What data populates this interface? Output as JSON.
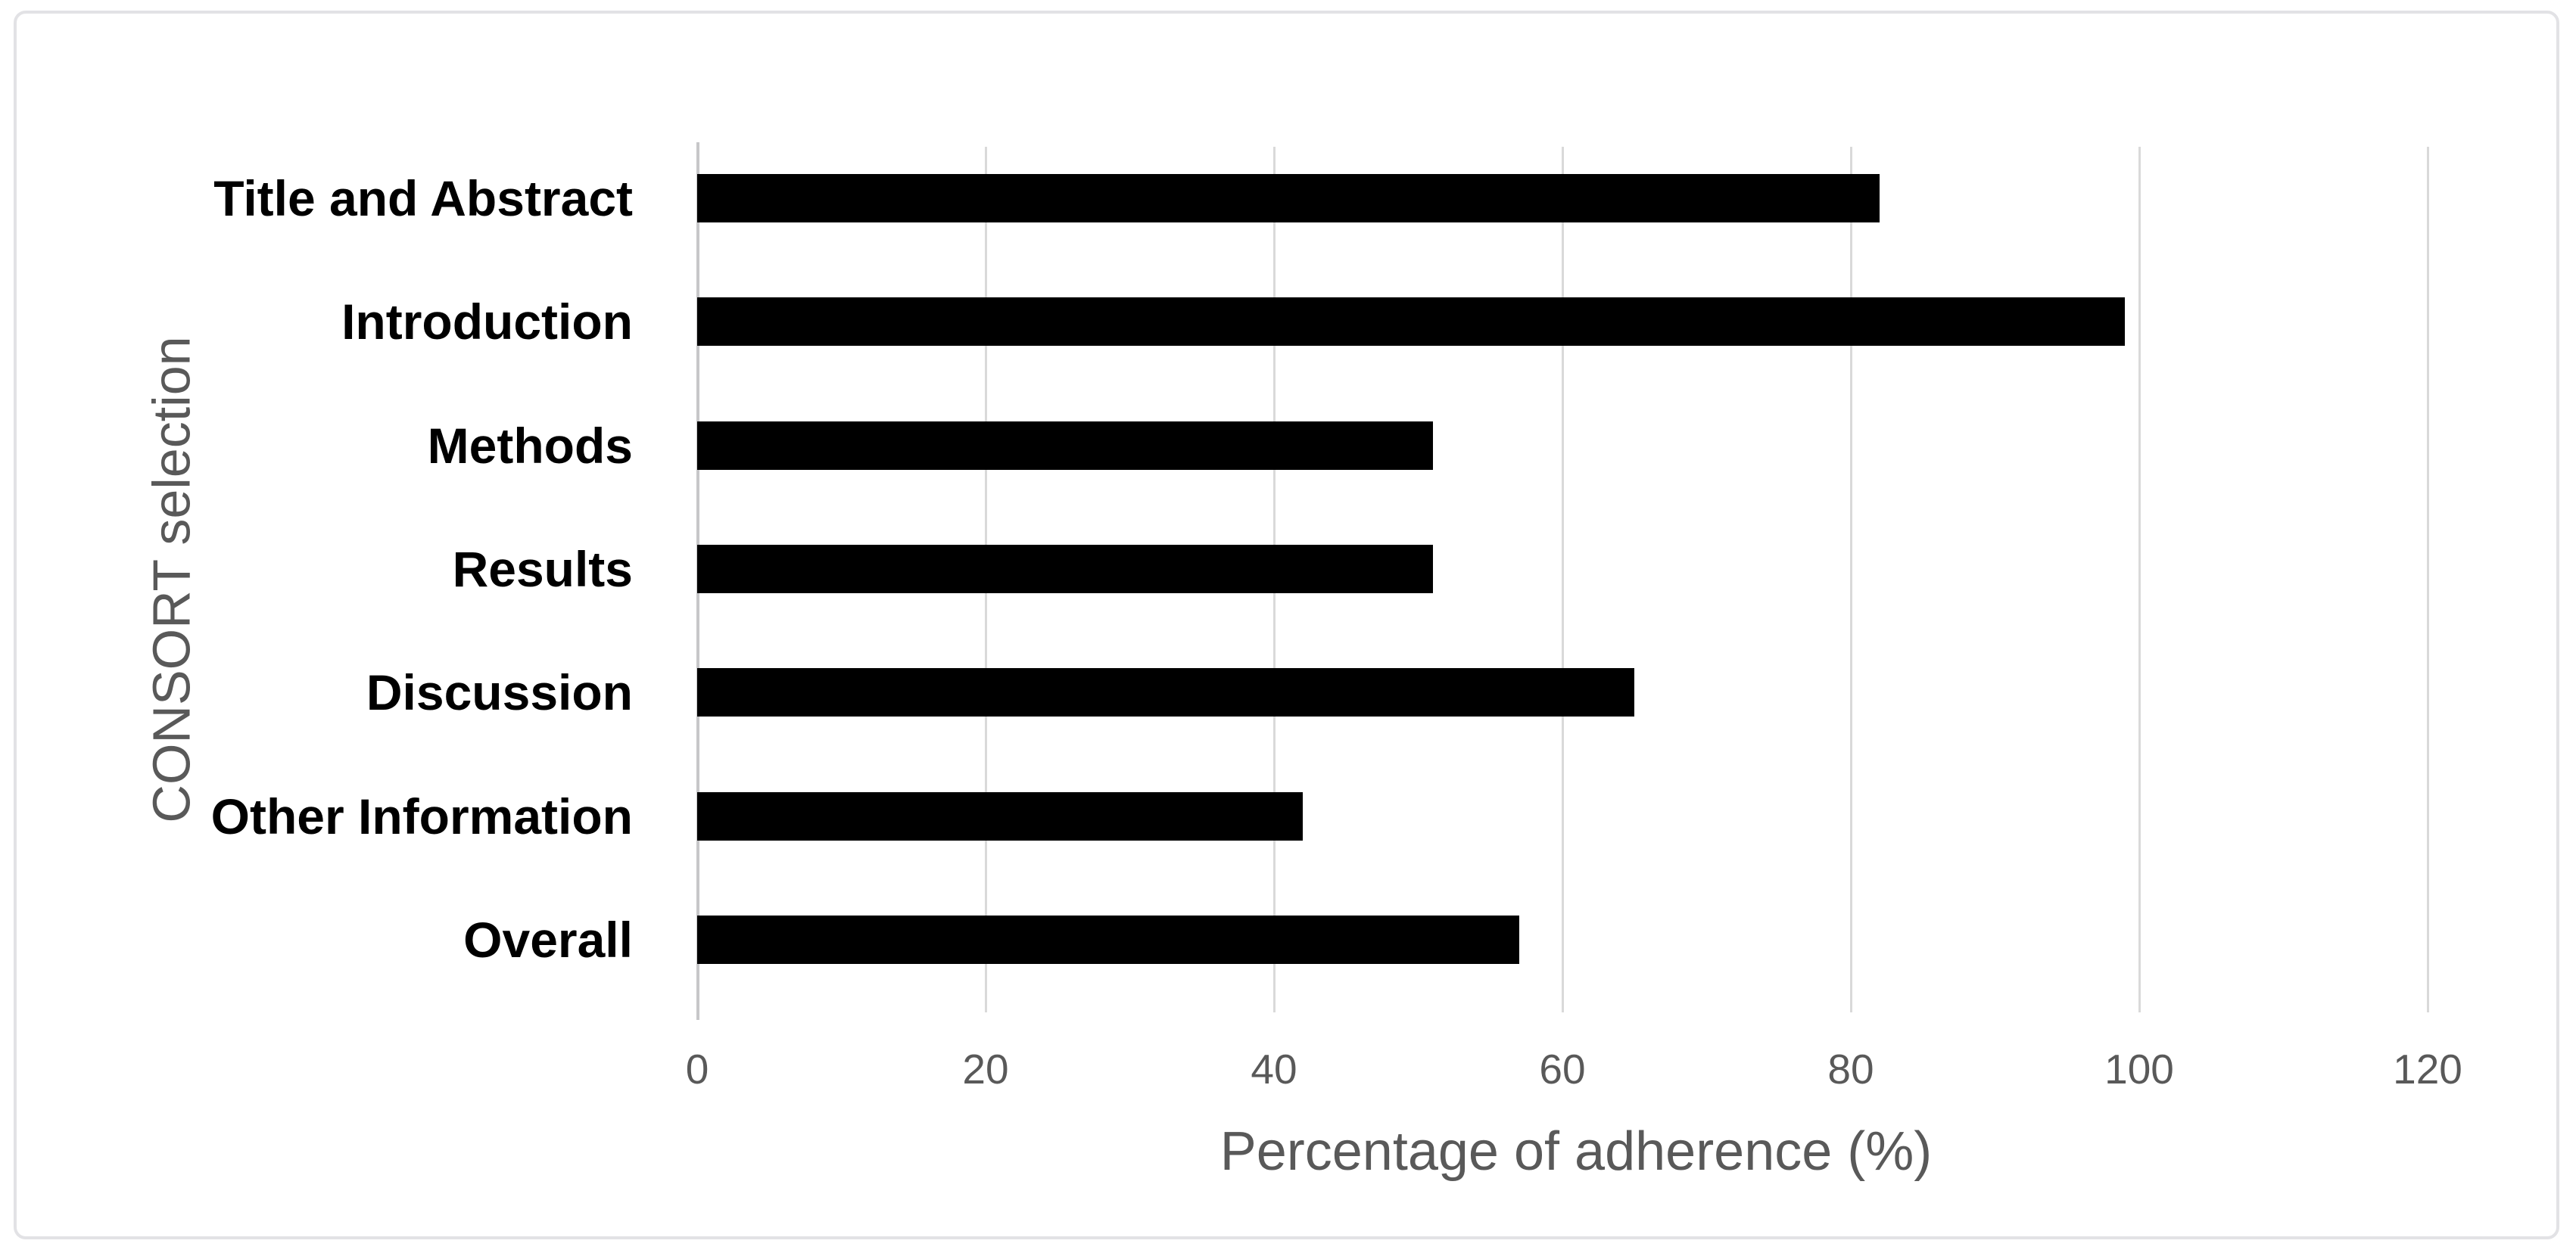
{
  "chart_data": {
    "type": "bar",
    "orientation": "horizontal",
    "categories": [
      "Title and Abstract",
      "Introduction",
      "Methods",
      "Results",
      "Discussion",
      "Other Information",
      "Overall"
    ],
    "values": [
      82,
      99,
      51,
      51,
      65,
      42,
      57
    ],
    "title": "",
    "xlabel": "Percentage of adherence (%)",
    "ylabel": "CONSORT selection",
    "xlim": [
      0,
      120
    ],
    "xticks": [
      0,
      20,
      40,
      60,
      80,
      100,
      120
    ],
    "grid": "vertical-only",
    "legend": "none",
    "bar_color": "#000000"
  },
  "style": {
    "background_color": "#ffffff",
    "frame_border_color": "#e2e2e5",
    "gridline_color": "#d9d9d9",
    "axis_line_color": "#c7c7c9",
    "category_label_color": "#000000",
    "tick_label_color": "#595959",
    "axis_title_color": "#595959"
  }
}
